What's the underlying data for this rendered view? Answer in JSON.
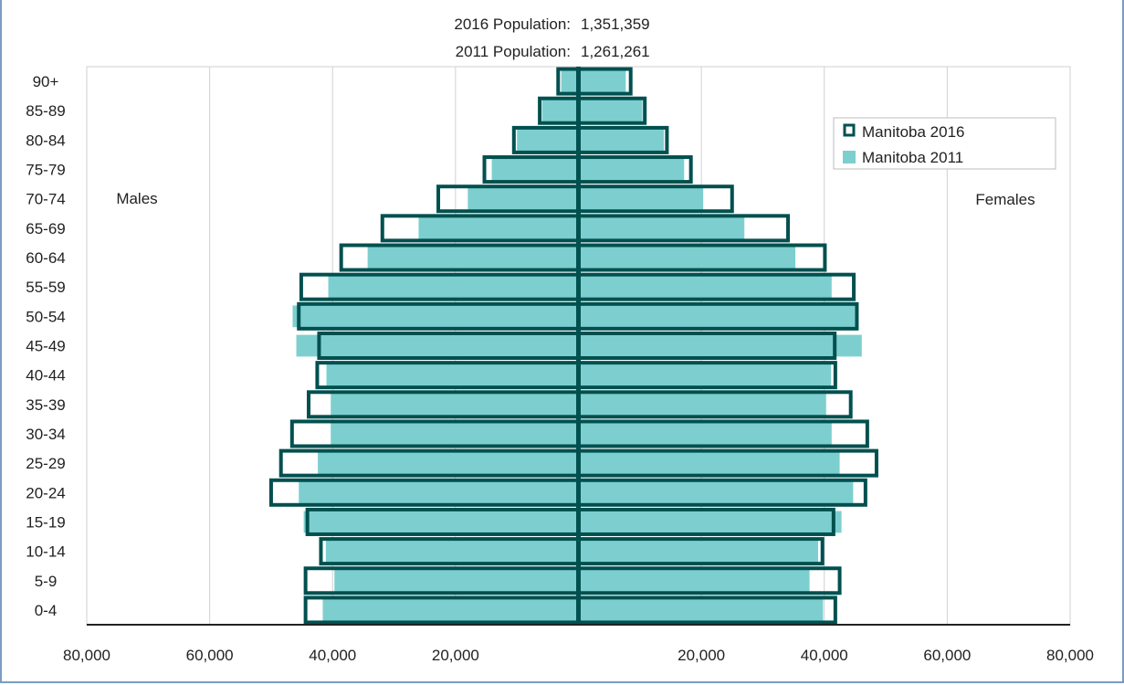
{
  "chart_data": {
    "type": "bar",
    "orientation": "horizontal-pyramid",
    "title_lines": [
      {
        "label": "2016 Population:",
        "value": "1,351,359"
      },
      {
        "label": "2011 Population:",
        "value": "1,261,261"
      }
    ],
    "side_labels": {
      "left": "Males",
      "right": "Females"
    },
    "categories": [
      "0-4",
      "5-9",
      "10-14",
      "15-19",
      "20-24",
      "25-29",
      "30-34",
      "35-39",
      "40-44",
      "45-49",
      "50-54",
      "55-59",
      "60-64",
      "65-69",
      "70-74",
      "75-79",
      "80-84",
      "85-89",
      "90+"
    ],
    "x_ticks": [
      "80,000",
      "60,000",
      "40,000",
      "20,000",
      "",
      "20,000",
      "40,000",
      "60,000",
      "80,000"
    ],
    "xlim": [
      -80000,
      80000
    ],
    "legend_position": "top-right",
    "series": [
      {
        "name": "Manitoba 2016",
        "style": "outline",
        "color": "#00504f",
        "males": [
          44400,
          44400,
          41900,
          44100,
          50000,
          48400,
          46600,
          43900,
          42500,
          42200,
          45500,
          45100,
          38600,
          31900,
          22800,
          15300,
          10500,
          6300,
          3300
        ],
        "females": [
          41800,
          42500,
          39700,
          41500,
          46700,
          48500,
          47000,
          44300,
          41800,
          41700,
          45300,
          44800,
          40100,
          34100,
          25000,
          18300,
          14400,
          10800,
          8500
        ]
      },
      {
        "name": "Manitoba 2011",
        "style": "fill",
        "color": "#7dcfcf",
        "males": [
          41600,
          39700,
          41100,
          44700,
          45500,
          42400,
          40300,
          40300,
          41000,
          45900,
          46500,
          40700,
          34300,
          26000,
          18000,
          14100,
          10000,
          5900,
          2800
        ],
        "females": [
          39800,
          37600,
          39000,
          42800,
          44700,
          42500,
          41200,
          40300,
          41100,
          46100,
          45000,
          41200,
          35300,
          27000,
          20300,
          17200,
          13900,
          10400,
          7700
        ]
      }
    ]
  }
}
